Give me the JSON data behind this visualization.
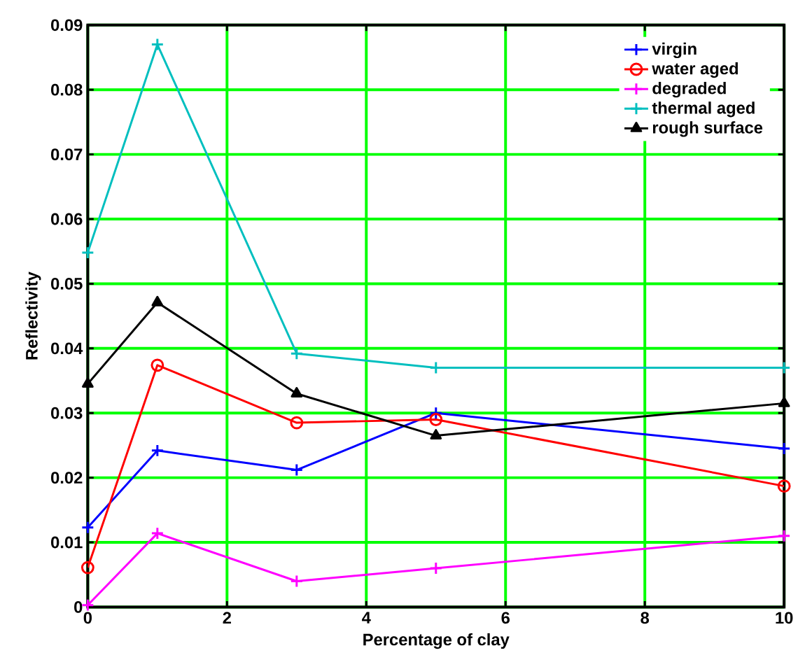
{
  "chart_data": {
    "type": "line",
    "xlabel": "Percentage of clay",
    "ylabel": "Reflectivity",
    "x": [
      0,
      1,
      3,
      5,
      10
    ],
    "series": [
      {
        "name": "virgin",
        "color": "#0000ff",
        "marker": "cross",
        "values": [
          0.0123,
          0.0242,
          0.0212,
          0.03,
          0.0245
        ]
      },
      {
        "name": "water aged",
        "color": "#ff0000",
        "marker": "circle",
        "values": [
          0.0061,
          0.0374,
          0.0285,
          0.029,
          0.0187
        ]
      },
      {
        "name": "degraded",
        "color": "#ff00ff",
        "marker": "cross",
        "values": [
          0.0003,
          0.0114,
          0.004,
          0.006,
          0.011
        ]
      },
      {
        "name": "thermal aged",
        "color": "#00bfbf",
        "marker": "cross",
        "values": [
          0.0548,
          0.087,
          0.0392,
          0.037,
          0.037
        ]
      },
      {
        "name": "rough surface",
        "color": "#000000",
        "marker": "triangle",
        "values": [
          0.0345,
          0.0471,
          0.033,
          0.0265,
          0.0315
        ]
      }
    ],
    "xlim": [
      0,
      10
    ],
    "ylim": [
      0,
      0.09
    ],
    "xticks": [
      0,
      2,
      4,
      6,
      8,
      10
    ],
    "yticks": [
      0,
      0.01,
      0.02,
      0.03,
      0.04,
      0.05,
      0.06,
      0.07,
      0.08,
      0.09
    ],
    "grid": true,
    "legend": "top right",
    "line_style": "solid"
  }
}
